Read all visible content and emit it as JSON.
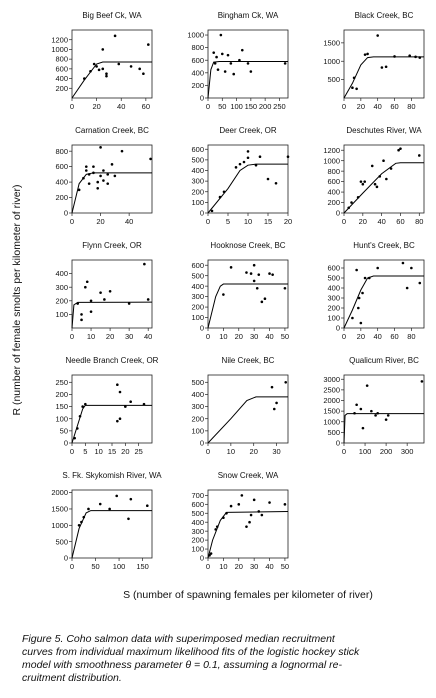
{
  "y_axis_label": "R (number of female smolts per kilometer of river)",
  "x_axis_label": "S (number of spawning females per kilometer of river)",
  "caption": [
    "Figure 5.   Coho salmon data with superimposed median recruitment",
    "curves from individual maximum likelihood fits of the logistic hockey stick",
    "model with smoothness parameter θ = 0.1, assuming a lognormal re-",
    "cruitment distribution."
  ],
  "chart_data": [
    {
      "type": "scatter",
      "title": "Big Beef Ck, WA",
      "color": "#000",
      "x": [
        10,
        15,
        18,
        20,
        22,
        25,
        25,
        28,
        28,
        35,
        38,
        48,
        55,
        58,
        62
      ],
      "y": [
        400,
        550,
        700,
        650,
        580,
        600,
        1000,
        500,
        450,
        1280,
        700,
        650,
        600,
        500,
        1100
      ],
      "fit_x": [
        0,
        10,
        20,
        25,
        65
      ],
      "fit_y": [
        0,
        370,
        700,
        740,
        740
      ],
      "xlim": [
        0,
        65
      ],
      "xticks": [
        0,
        20,
        40,
        60
      ],
      "ylim": [
        0,
        1400
      ],
      "yticks": [
        200,
        400,
        600,
        800,
        1000,
        1200
      ]
    },
    {
      "type": "scatter",
      "title": "Bingham Ck, WA",
      "color": "#000",
      "x": [
        20,
        25,
        30,
        35,
        45,
        50,
        60,
        70,
        80,
        90,
        110,
        120,
        140,
        150,
        270
      ],
      "y": [
        720,
        550,
        650,
        450,
        1000,
        700,
        420,
        680,
        550,
        380,
        600,
        760,
        550,
        420,
        550
      ],
      "fit_x": [
        0,
        10,
        20,
        40,
        280
      ],
      "fit_y": [
        0,
        450,
        570,
        580,
        580
      ],
      "xlim": [
        0,
        280
      ],
      "xticks": [
        0,
        50,
        100,
        150,
        200,
        250
      ],
      "ylim": [
        0,
        1080
      ],
      "yticks": [
        0,
        200,
        400,
        600,
        800,
        1000
      ]
    },
    {
      "type": "scatter",
      "title": "Black Creek, BC",
      "color": "#000",
      "x": [
        10,
        12,
        15,
        25,
        28,
        40,
        45,
        50,
        60,
        78,
        85,
        90
      ],
      "y": [
        280,
        550,
        250,
        1180,
        1200,
        1700,
        830,
        850,
        1130,
        1150,
        1120,
        1100
      ],
      "fit_x": [
        0,
        10,
        20,
        28,
        35,
        95
      ],
      "fit_y": [
        0,
        400,
        900,
        1100,
        1120,
        1120
      ],
      "xlim": [
        0,
        95
      ],
      "xticks": [
        0,
        20,
        40,
        60,
        80
      ],
      "ylim": [
        0,
        1850
      ],
      "yticks": [
        500,
        1000,
        1500
      ]
    },
    {
      "type": "scatter",
      "title": "Carnation Creek, BC",
      "color": "#000",
      "x": [
        5,
        8,
        10,
        10,
        12,
        12,
        15,
        15,
        18,
        18,
        20,
        20,
        22,
        22,
        25,
        25,
        28,
        30,
        35,
        55
      ],
      "y": [
        300,
        450,
        550,
        600,
        500,
        380,
        600,
        520,
        400,
        320,
        850,
        480,
        550,
        420,
        380,
        500,
        630,
        480,
        800,
        700
      ],
      "fit_x": [
        0,
        5,
        10,
        15,
        56
      ],
      "fit_y": [
        0,
        380,
        500,
        520,
        520
      ],
      "xlim": [
        0,
        56
      ],
      "xticks": [
        0,
        20,
        40
      ],
      "ylim": [
        0,
        880
      ],
      "yticks": [
        0,
        200,
        400,
        600,
        800
      ]
    },
    {
      "type": "scatter",
      "title": "Deer Creek, OR",
      "color": "#000",
      "x": [
        1,
        3,
        4,
        7,
        8,
        9,
        10,
        10,
        12,
        13,
        15,
        17,
        20
      ],
      "y": [
        20,
        150,
        200,
        430,
        460,
        480,
        580,
        520,
        450,
        530,
        320,
        280,
        530
      ],
      "fit_x": [
        0,
        5,
        8,
        10,
        12,
        20
      ],
      "fit_y": [
        0,
        230,
        400,
        450,
        460,
        460
      ],
      "xlim": [
        0,
        20
      ],
      "xticks": [
        0,
        5,
        10,
        15,
        20
      ],
      "ylim": [
        0,
        640
      ],
      "yticks": [
        0,
        100,
        200,
        300,
        400,
        500,
        600
      ]
    },
    {
      "type": "scatter",
      "title": "Deschutes River, WA",
      "color": "#000",
      "x": [
        5,
        8,
        15,
        18,
        20,
        22,
        30,
        33,
        35,
        38,
        42,
        45,
        50,
        58,
        60,
        80
      ],
      "y": [
        100,
        200,
        300,
        600,
        550,
        600,
        900,
        550,
        500,
        700,
        1000,
        650,
        850,
        1200,
        1230,
        1100
      ],
      "fit_x": [
        0,
        20,
        40,
        55,
        60,
        85
      ],
      "fit_y": [
        0,
        380,
        750,
        950,
        960,
        960
      ],
      "xlim": [
        0,
        85
      ],
      "xticks": [
        0,
        20,
        40,
        60,
        80
      ],
      "ylim": [
        0,
        1300
      ],
      "yticks": [
        0,
        200,
        400,
        600,
        800,
        1000,
        1200
      ]
    },
    {
      "type": "scatter",
      "title": "Flynn Creek, OR",
      "color": "#000",
      "x": [
        3,
        5,
        5,
        7,
        8,
        10,
        10,
        15,
        17,
        20,
        30,
        38,
        40
      ],
      "y": [
        180,
        100,
        60,
        300,
        340,
        200,
        120,
        260,
        210,
        270,
        180,
        470,
        210
      ],
      "fit_x": [
        0,
        1,
        3,
        42
      ],
      "fit_y": [
        0,
        170,
        188,
        190
      ],
      "xlim": [
        0,
        42
      ],
      "xticks": [
        0,
        10,
        20,
        30,
        40
      ],
      "ylim": [
        0,
        500
      ],
      "yticks": [
        100,
        200,
        300,
        400
      ]
    },
    {
      "type": "scatter",
      "title": "Hooknose Creek, BC",
      "color": "#000",
      "x": [
        10,
        15,
        25,
        28,
        30,
        30,
        32,
        33,
        35,
        37,
        40,
        42,
        50
      ],
      "y": [
        320,
        580,
        530,
        520,
        600,
        450,
        380,
        510,
        250,
        280,
        520,
        510,
        380
      ],
      "fit_x": [
        0,
        5,
        8,
        10,
        52
      ],
      "fit_y": [
        0,
        300,
        400,
        420,
        420
      ],
      "xlim": [
        0,
        52
      ],
      "xticks": [
        0,
        10,
        20,
        30,
        40,
        50
      ],
      "ylim": [
        0,
        650
      ],
      "yticks": [
        0,
        100,
        200,
        300,
        400,
        500,
        600
      ]
    },
    {
      "type": "scatter",
      "title": "Hunt's Creek, BC",
      "color": "#000",
      "x": [
        10,
        15,
        17,
        18,
        20,
        22,
        25,
        30,
        40,
        70,
        75,
        80,
        90
      ],
      "y": [
        100,
        580,
        200,
        300,
        50,
        350,
        500,
        500,
        600,
        650,
        400,
        600,
        450
      ],
      "fit_x": [
        0,
        10,
        20,
        28,
        35,
        95
      ],
      "fit_y": [
        0,
        180,
        380,
        500,
        520,
        520
      ],
      "xlim": [
        0,
        95
      ],
      "xticks": [
        0,
        20,
        40,
        60,
        80
      ],
      "ylim": [
        0,
        680
      ],
      "yticks": [
        0,
        100,
        200,
        300,
        400,
        500,
        600
      ]
    },
    {
      "type": "scatter",
      "title": "Needle Branch Creek, OR",
      "color": "#000",
      "x": [
        1,
        2,
        3,
        4,
        5,
        17,
        17,
        18,
        18,
        20,
        22,
        27
      ],
      "y": [
        20,
        60,
        110,
        150,
        160,
        240,
        90,
        210,
        100,
        150,
        170,
        160
      ],
      "fit_x": [
        0,
        2,
        4,
        5,
        30
      ],
      "fit_y": [
        0,
        70,
        140,
        155,
        155
      ],
      "xlim": [
        0,
        30
      ],
      "xticks": [
        0,
        5,
        10,
        15,
        20,
        25
      ],
      "ylim": [
        0,
        280
      ],
      "yticks": [
        0,
        50,
        100,
        150,
        200,
        250
      ]
    },
    {
      "type": "scatter",
      "title": "Nile Creek, BC",
      "color": "#000",
      "x": [
        28,
        29,
        30,
        34
      ],
      "y": [
        460,
        280,
        330,
        500
      ],
      "fit_x": [
        0,
        10,
        17,
        21,
        35
      ],
      "fit_y": [
        0,
        200,
        350,
        380,
        380
      ],
      "xlim": [
        0,
        35
      ],
      "xticks": [
        0,
        10,
        20,
        30
      ],
      "ylim": [
        0,
        560
      ],
      "yticks": [
        0,
        100,
        200,
        300,
        400,
        500
      ]
    },
    {
      "type": "scatter",
      "title": "Qualicum River, BC",
      "color": "#000",
      "x": [
        50,
        60,
        80,
        90,
        110,
        130,
        150,
        160,
        200,
        210,
        370
      ],
      "y": [
        1400,
        1800,
        1600,
        700,
        2700,
        1500,
        1300,
        1400,
        1100,
        1300,
        2900
      ],
      "fit_x": [
        0,
        5,
        15,
        380
      ],
      "fit_y": [
        0,
        1300,
        1380,
        1380
      ],
      "xlim": [
        0,
        380
      ],
      "xticks": [
        0,
        100,
        200,
        300
      ],
      "ylim": [
        0,
        3200
      ],
      "yticks": [
        0,
        500,
        1000,
        1500,
        2000,
        2500,
        3000
      ]
    },
    {
      "type": "scatter",
      "title": "S. Fk. Skykomish River, WA",
      "color": "#000",
      "x": [
        15,
        20,
        25,
        35,
        60,
        80,
        95,
        120,
        125,
        160
      ],
      "y": [
        1000,
        1100,
        1250,
        1500,
        1650,
        1500,
        1900,
        1200,
        1800,
        1600
      ],
      "fit_x": [
        0,
        15,
        30,
        40,
        170
      ],
      "fit_y": [
        0,
        900,
        1380,
        1450,
        1450
      ],
      "xlim": [
        0,
        170
      ],
      "xticks": [
        0,
        50,
        100,
        150
      ],
      "ylim": [
        0,
        2080
      ],
      "yticks": [
        0,
        500,
        1000,
        1500,
        2000
      ]
    },
    {
      "type": "scatter",
      "title": "Snow Creek, WA",
      "color": "#000",
      "x": [
        1,
        2,
        5,
        6,
        10,
        12,
        15,
        20,
        22,
        25,
        27,
        28,
        30,
        33,
        35,
        40,
        50
      ],
      "y": [
        30,
        50,
        320,
        350,
        450,
        500,
        580,
        600,
        700,
        350,
        400,
        480,
        650,
        520,
        480,
        620,
        600
      ],
      "fit_x": [
        0,
        3,
        8,
        12,
        52
      ],
      "fit_y": [
        0,
        200,
        420,
        510,
        520
      ],
      "xlim": [
        0,
        52
      ],
      "xticks": [
        0,
        10,
        20,
        30,
        40,
        50
      ],
      "ylim": [
        0,
        760
      ],
      "yticks": [
        0,
        100,
        200,
        300,
        400,
        500,
        600,
        700
      ]
    }
  ]
}
